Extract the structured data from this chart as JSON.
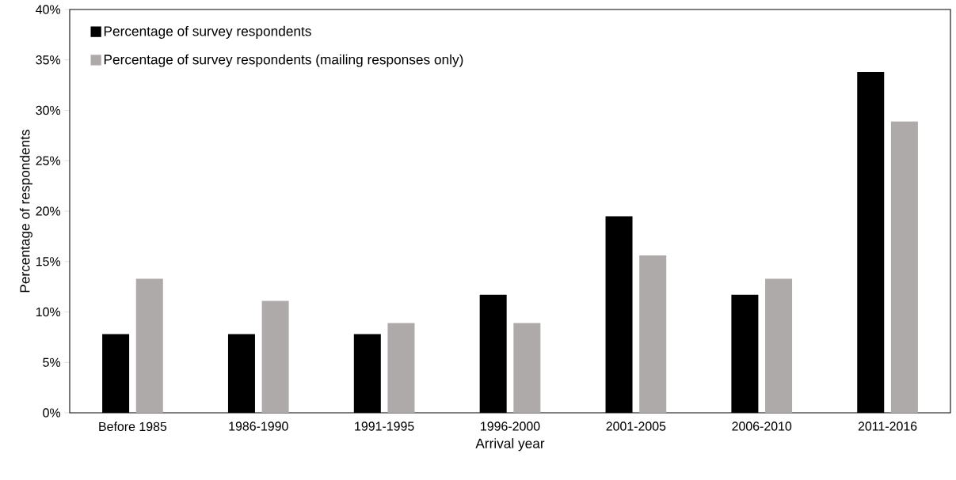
{
  "chart_data": {
    "type": "bar",
    "xlabel": "Arrival year",
    "ylabel": "Percentage of respondents",
    "categories": [
      "Before 1985",
      "1986-1990",
      "1991-1995",
      "1996-2000",
      "2001-2005",
      "2006-2010",
      "2011-2016"
    ],
    "series": [
      {
        "name": "Percentage of survey respondents",
        "color": "#000000",
        "values": [
          7.8,
          7.8,
          7.8,
          11.7,
          19.5,
          11.7,
          33.8
        ]
      },
      {
        "name": "Percentage of survey respondents (mailing responses only)",
        "color": "#aeaaaa",
        "values": [
          13.3,
          11.1,
          8.9,
          8.9,
          15.6,
          13.3,
          28.9
        ]
      }
    ],
    "ylim": [
      0,
      40
    ],
    "yticks": [
      {
        "value": 0,
        "label": "0%"
      },
      {
        "value": 5,
        "label": "5%"
      },
      {
        "value": 10,
        "label": "10%"
      },
      {
        "value": 15,
        "label": "15%"
      },
      {
        "value": 20,
        "label": "20%"
      },
      {
        "value": 25,
        "label": "25%"
      },
      {
        "value": 30,
        "label": "30%"
      },
      {
        "value": 35,
        "label": "35%"
      },
      {
        "value": 40,
        "label": "40%"
      }
    ],
    "legend": "top left"
  }
}
